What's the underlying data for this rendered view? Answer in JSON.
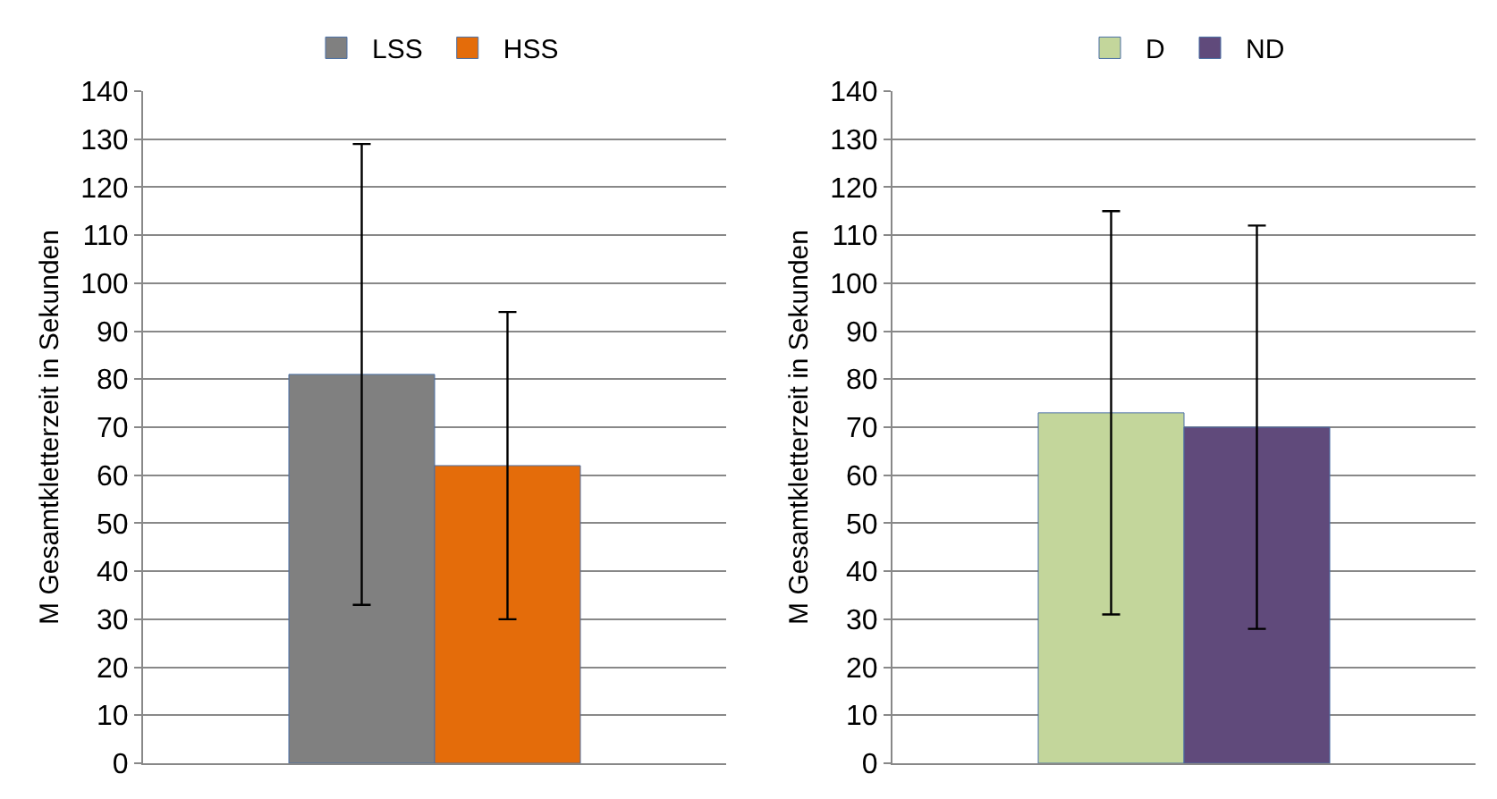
{
  "chart_data": [
    {
      "type": "bar",
      "categories": [
        null
      ],
      "ylabel": "M Gesamtkletterzeit in Sekunden",
      "ylim": [
        0,
        140
      ],
      "yticks": [
        0,
        10,
        20,
        30,
        40,
        50,
        60,
        70,
        80,
        90,
        100,
        110,
        120,
        130,
        140
      ],
      "grid": "y",
      "legend": "top",
      "tick_labels": "y",
      "series": [
        {
          "name": "LSS",
          "color": "#808080",
          "values": [
            81
          ],
          "errors": [
            48
          ]
        },
        {
          "name": "HSS",
          "color": "#e46c0a",
          "values": [
            62
          ],
          "errors": [
            32
          ]
        }
      ]
    },
    {
      "type": "bar",
      "categories": [
        null
      ],
      "ylabel": "M Gesamtkletterzeit in Sekunden",
      "ylim": [
        0,
        140
      ],
      "yticks": [
        0,
        10,
        20,
        30,
        40,
        50,
        60,
        70,
        80,
        90,
        100,
        110,
        120,
        130,
        140
      ],
      "grid": "y",
      "legend": "top",
      "tick_labels": "y",
      "series": [
        {
          "name": "D",
          "color": "#c3d69b",
          "values": [
            73
          ],
          "errors": [
            42
          ]
        },
        {
          "name": "ND",
          "color": "#604a7b",
          "values": [
            70
          ],
          "errors": [
            42
          ]
        }
      ]
    }
  ]
}
